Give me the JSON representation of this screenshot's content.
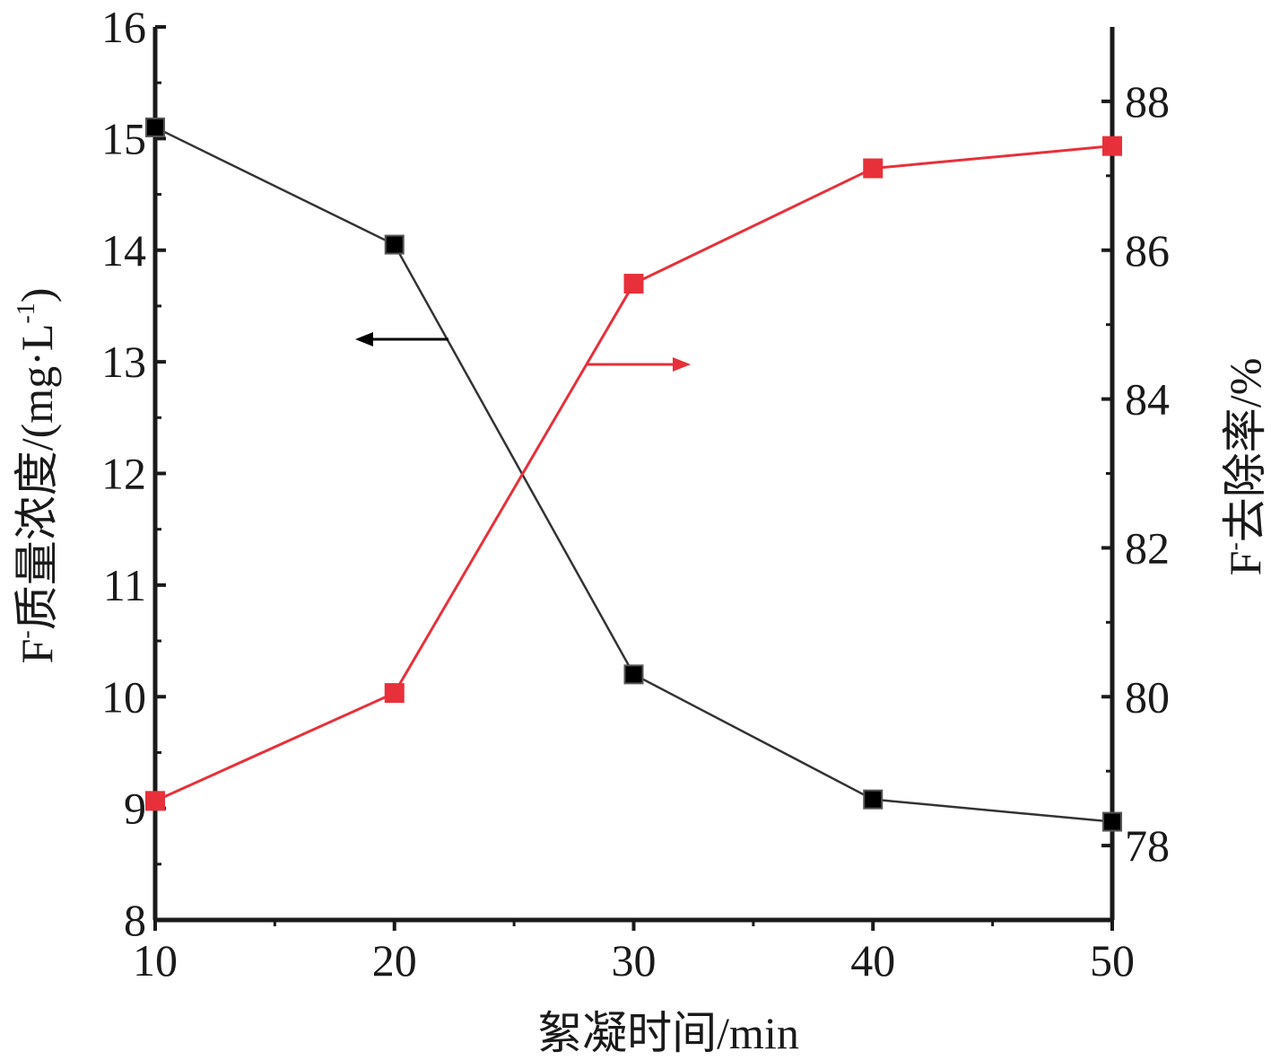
{
  "chart_data": {
    "type": "line",
    "x": [
      10,
      20,
      30,
      40,
      50
    ],
    "xlabel": "絮凝时间/min",
    "xlim": [
      10,
      50
    ],
    "xticks": [
      "10",
      "20",
      "30",
      "40",
      "50"
    ],
    "left_axis": {
      "label": {
        "prefix": "F",
        "sup": "-",
        "main": "质量浓度/(mg·L",
        "sup2": "-1",
        "suffix": ")"
      },
      "ylim": [
        8,
        16
      ],
      "ticks": [
        "8",
        "9",
        "10",
        "11",
        "12",
        "13",
        "14",
        "15",
        "16"
      ]
    },
    "right_axis": {
      "label": {
        "prefix": "F",
        "sup": "-",
        "main": "去除率/%"
      },
      "ylim": [
        77,
        89
      ],
      "ticks": [
        "78",
        "80",
        "82",
        "84",
        "86",
        "88"
      ]
    },
    "series": [
      {
        "axis": "left",
        "color": "#000000",
        "line_color": "#333333",
        "marker": "square",
        "values": [
          15.1,
          14.05,
          10.2,
          9.08,
          8.88
        ]
      },
      {
        "axis": "right",
        "color": "#e8303a",
        "line_color": "#e8303a",
        "marker": "square",
        "values": [
          78.6,
          80.05,
          85.55,
          87.1,
          87.4
        ]
      }
    ],
    "annotations": [
      {
        "type": "arrow",
        "direction": "left",
        "color": "#000000",
        "meaning": "left-axis series"
      },
      {
        "type": "arrow",
        "direction": "right",
        "color": "#e8303a",
        "meaning": "right-axis series"
      }
    ],
    "grid": false
  }
}
